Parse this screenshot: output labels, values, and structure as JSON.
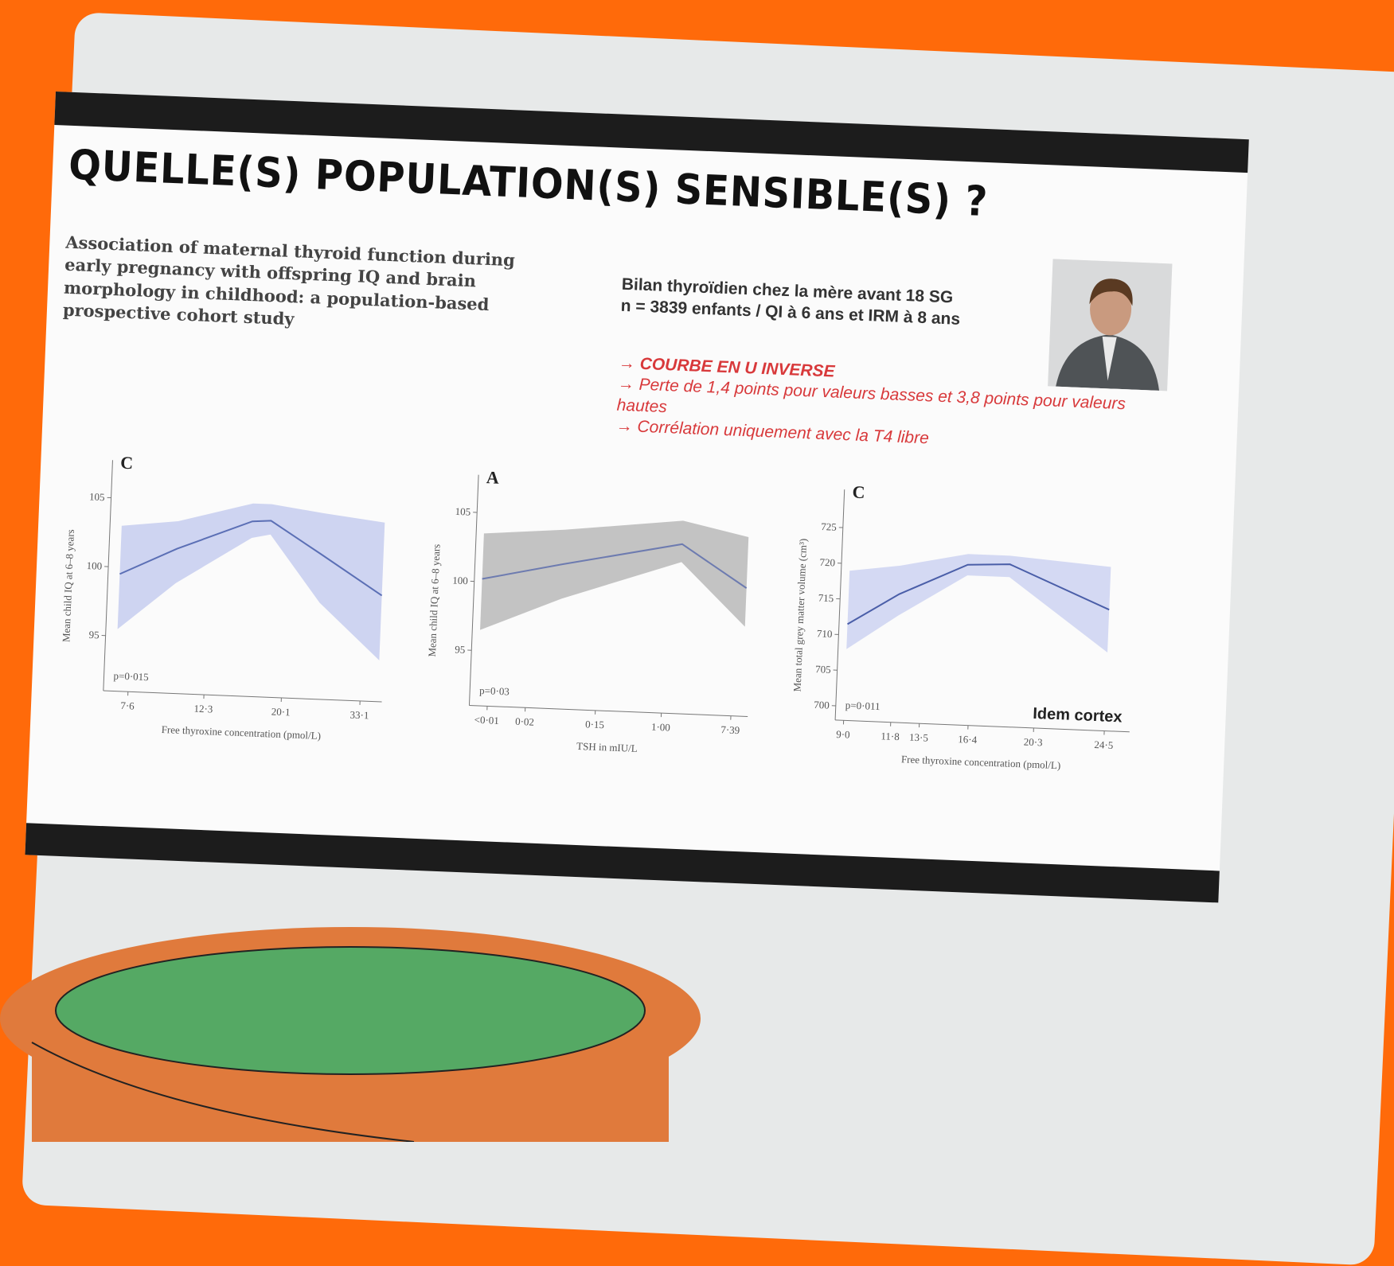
{
  "slide": {
    "title": "QUELLE(S) POPULATION(S) SENSIBLE(S) ?",
    "article_title": "Association of maternal thyroid function during early pregnancy with offspring IQ and brain morphology in childhood: a population-based prospective cohort study",
    "summary": [
      "Bilan thyroïdien chez la mère avant 18 SG",
      "n = 3839 enfants / QI à 6 ans et IRM à 8 ans"
    ],
    "bullets": [
      "COURBE EN U INVERSE",
      "Perte de 1,4 points pour valeurs basses et 3,8 points pour valeurs hautes",
      "Corrélation uniquement avec la T4 libre"
    ]
  },
  "chart_data": [
    {
      "type": "line",
      "panel": "C",
      "xscale": "log",
      "xlabel": "Free thyroxine concentration (pmol/L)",
      "ylabel": "Mean child IQ at 6–8 years",
      "annotations": [
        "p=0·015"
      ],
      "xlim": [
        6.5,
        38
      ],
      "xticks": [
        {
          "value": 7.6,
          "label": "7·6"
        },
        {
          "value": 12.3,
          "label": "12·3"
        },
        {
          "value": 20.1,
          "label": "20·1"
        },
        {
          "value": 33.1,
          "label": "33·1"
        }
      ],
      "ylim": [
        91,
        106
      ],
      "yticks": [
        95,
        100,
        105
      ],
      "series": [
        {
          "color": "#5b6fb5",
          "band_color": "#c9cff0",
          "x": [
            7,
            10,
            16,
            18,
            25,
            37
          ],
          "values": [
            99.5,
            101.5,
            103.7,
            103.8,
            101.5,
            98.7
          ],
          "lower": [
            95.5,
            99,
            102.5,
            102.8,
            98,
            94
          ],
          "upper": [
            103,
            103.5,
            105,
            105,
            104.5,
            104
          ]
        }
      ]
    },
    {
      "type": "line",
      "panel": "A",
      "xscale": "log",
      "xlabel": "TSH in mIU/L",
      "ylabel": "Mean child IQ at 6–8 years",
      "annotations": [
        "p=0·03"
      ],
      "xlim": [
        0.004,
        12
      ],
      "xticks": [
        {
          "value": 0.0067,
          "label": "<0·01"
        },
        {
          "value": 0.02,
          "label": "0·02"
        },
        {
          "value": 0.15,
          "label": "0·15"
        },
        {
          "value": 1,
          "label": "1·00"
        },
        {
          "value": 7.39,
          "label": "7·39"
        }
      ],
      "ylim": [
        91,
        106
      ],
      "yticks": [
        95,
        100,
        105
      ],
      "series": [
        {
          "color": "#6d7bb0",
          "band_color": "#bdbdbd",
          "x": [
            0.005,
            0.05,
            1.5,
            10
          ],
          "values": [
            100.2,
            101.5,
            103.3,
            100.3
          ],
          "lower": [
            96.5,
            99,
            102,
            97.5
          ],
          "upper": [
            103.5,
            104,
            105,
            104
          ]
        }
      ]
    },
    {
      "type": "line",
      "panel": "C",
      "xscale": "linear",
      "xlabel": "Free thyroxine concentration (pmol/L)",
      "ylabel": "Mean total grey matter volume (cm³)",
      "annotations": [
        "p=0·011",
        "Idem cortex"
      ],
      "xlim": [
        8.5,
        26
      ],
      "xticks": [
        {
          "value": 9,
          "label": "9·0"
        },
        {
          "value": 11.8,
          "label": "11·8"
        },
        {
          "value": 13.5,
          "label": "13·5"
        },
        {
          "value": 16.4,
          "label": "16·4"
        },
        {
          "value": 20.3,
          "label": "20·3"
        },
        {
          "value": 24.5,
          "label": "24·5"
        }
      ],
      "ylim": [
        698,
        727
      ],
      "yticks": [
        700,
        705,
        710,
        715,
        720,
        725
      ],
      "series": [
        {
          "color": "#4a5ea8",
          "band_color": "#cfd5f2",
          "x": [
            9,
            12,
            16,
            18.5,
            24.5
          ],
          "values": [
            711.5,
            716,
            720.5,
            720.8,
            715
          ],
          "lower": [
            708,
            713,
            719,
            719,
            709
          ],
          "upper": [
            719,
            720,
            722,
            722,
            721
          ]
        }
      ]
    }
  ]
}
